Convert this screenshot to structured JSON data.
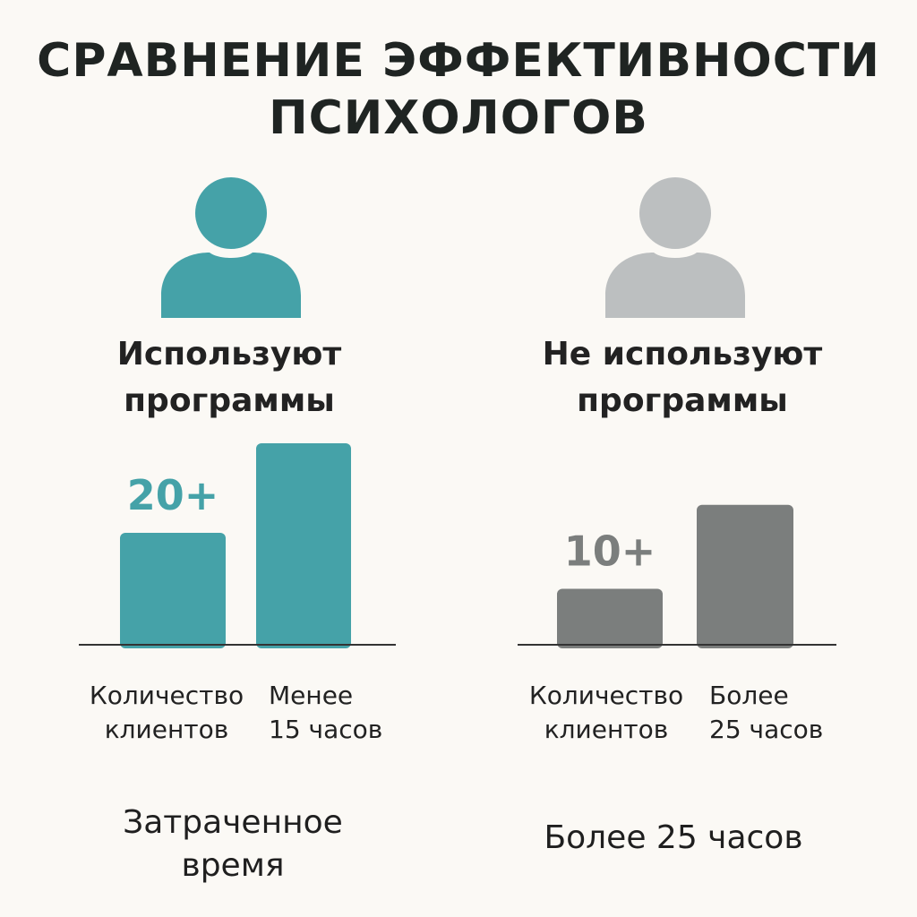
{
  "title": {
    "line1": "СРАВНЕНИЕ ЭФФЕКТИВНОСТИ",
    "line2": "ПСИХОЛОГОВ"
  },
  "colors": {
    "teal": "#45a2a8",
    "gray_avatar": "#bcbfc0",
    "gray_bar": "#7b7e7d",
    "baseline": "#333333"
  },
  "panels": [
    {
      "group_line1": "Используют",
      "group_line2": "программы",
      "icon": "person-icon",
      "footer": "Затраченное\nвремя",
      "cat1": "Количество\nклиентов",
      "cat2": "Менее\n15 часов",
      "value_label": "20+"
    },
    {
      "group_line1": "Не используют",
      "group_line2": "программы",
      "icon": "person-icon",
      "footer": "Более 25 часов",
      "cat1": "Количество\nклиентов",
      "cat2": "Более\n25 часов",
      "value_label": "10+"
    }
  ],
  "chart_data": [
    {
      "type": "bar",
      "categories": [
        "Количество\nклиентов",
        "Менее\n15 часов"
      ],
      "values": [
        20,
        36
      ],
      "data_labels": [
        "20+",
        ""
      ],
      "color": "#45a2a8"
    },
    {
      "type": "bar",
      "categories": [
        "Количество\nклиентов",
        "Более\n25 часов"
      ],
      "values": [
        10,
        25
      ],
      "data_labels": [
        "10+",
        ""
      ],
      "color": "#7b7e7d"
    }
  ]
}
